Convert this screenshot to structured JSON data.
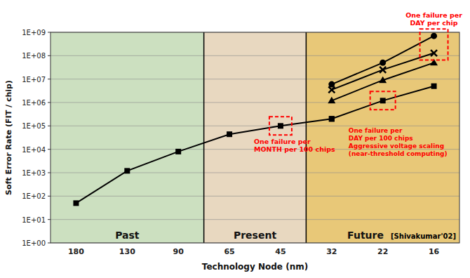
{
  "chart_data": {
    "type": "line",
    "xlabel": "Technology Node (nm)",
    "ylabel": "Soft Error Rate (FIT / chip)",
    "categories": [
      "180",
      "130",
      "90",
      "65",
      "45",
      "32",
      "22",
      "16"
    ],
    "series": [
      {
        "color": "#000000",
        "marker": "square",
        "values": [
          50,
          1200,
          8000,
          44000,
          100000,
          200000,
          null,
          null
        ]
      },
      {
        "color": "#000000",
        "marker": "circle",
        "values": [
          null,
          null,
          null,
          null,
          null,
          6000000,
          50000000,
          700000000
        ]
      },
      {
        "color": "#000000",
        "marker": "x",
        "values": [
          null,
          null,
          null,
          null,
          null,
          3500000,
          25000000,
          130000000
        ]
      },
      {
        "color": "#000000",
        "marker": "triangle",
        "values": [
          null,
          null,
          null,
          null,
          null,
          1200000,
          9000000,
          50000000
        ]
      },
      {
        "color": "#000000",
        "marker": "square",
        "values": [
          null,
          null,
          null,
          null,
          null,
          200000,
          1200000,
          5000000
        ]
      }
    ],
    "log": "y",
    "ylim": [
      1,
      1000000000
    ],
    "yticks": [
      {
        "value": 1,
        "label": "1E+00"
      },
      {
        "value": 10,
        "label": "1E+01"
      },
      {
        "value": 100,
        "label": "1E+02"
      },
      {
        "value": 1000,
        "label": "1E+03"
      },
      {
        "value": 10000,
        "label": "1E+04"
      },
      {
        "value": 100000,
        "label": "1E+05"
      },
      {
        "value": 1000000,
        "label": "1E+06"
      },
      {
        "value": 10000000,
        "label": "1E+07"
      },
      {
        "value": 100000000,
        "label": "1E+08"
      },
      {
        "value": 1000000000,
        "label": "1E+09"
      }
    ],
    "grid": true,
    "regions": [
      {
        "label": "Past",
        "color": "#cce0c0",
        "categories": [
          "180",
          "130",
          "90"
        ]
      },
      {
        "label": "Present",
        "color": "#e8d8c0",
        "categories": [
          "65",
          "45"
        ]
      },
      {
        "label": "Future",
        "color": "#e8c878",
        "categories": [
          "32",
          "22",
          "16"
        ]
      }
    ],
    "annotations": [
      {
        "text": "One failure per\nMONTH per 100 chips",
        "color": "red"
      },
      {
        "text": "One failure per\nDAY per chip",
        "color": "red"
      },
      {
        "text": "One failure per\nDAY per 100 chips\nAggressive voltage scaling\n(near-threshold computing)",
        "color": "red"
      },
      {
        "text": "[Shivakumar'02]"
      }
    ]
  }
}
